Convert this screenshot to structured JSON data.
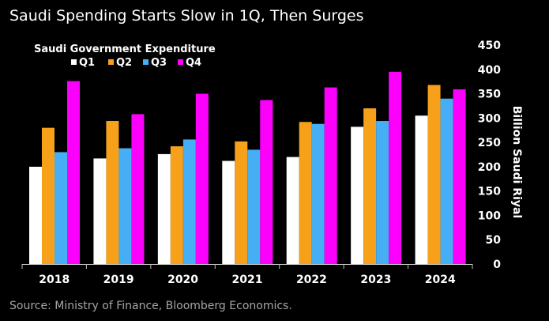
{
  "title": "Saudi Spending Starts Slow in 1Q, Then Surges",
  "source": "Source: Ministry of Finance, Bloomberg Economics.",
  "chart_data": {
    "type": "bar",
    "legend_title": "Saudi Government Expenditure",
    "categories": [
      "2018",
      "2019",
      "2020",
      "2021",
      "2022",
      "2023",
      "2024"
    ],
    "series": [
      {
        "name": "Q1",
        "color": "#ffffff",
        "values": [
          200,
          217,
          226,
          212,
          220,
          282,
          305
        ]
      },
      {
        "name": "Q2",
        "color": "#f7a11b",
        "values": [
          280,
          294,
          242,
          252,
          292,
          320,
          368
        ]
      },
      {
        "name": "Q3",
        "color": "#45aef5",
        "values": [
          230,
          238,
          256,
          235,
          288,
          294,
          340
        ]
      },
      {
        "name": "Q4",
        "color": "#fb00fb",
        "values": [
          376,
          308,
          350,
          337,
          363,
          395,
          359
        ]
      }
    ],
    "ylabel": "Billion Saudi Riyal",
    "ylim": [
      0,
      450
    ],
    "yticks": [
      0,
      50,
      100,
      150,
      200,
      250,
      300,
      350,
      400,
      450
    ],
    "grid": false,
    "legend_position": "top-left"
  }
}
